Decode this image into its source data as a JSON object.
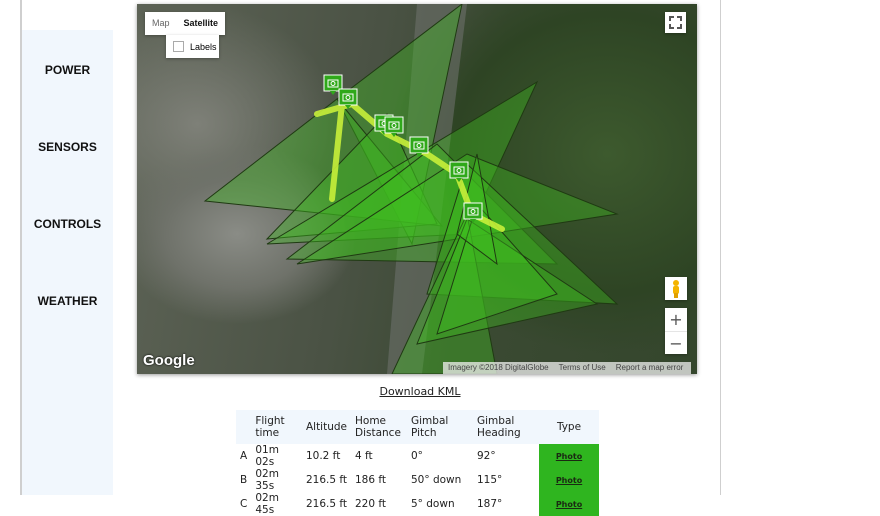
{
  "sidebar": {
    "items": [
      {
        "label": "POWER"
      },
      {
        "label": "SENSORS"
      },
      {
        "label": "CONTROLS"
      },
      {
        "label": "WEATHER"
      }
    ]
  },
  "map": {
    "type_control": {
      "map": "Map",
      "satellite": "Satellite",
      "selected": "Satellite",
      "labels": "Labels",
      "labels_checked": false
    },
    "logo": "Google",
    "attribution": {
      "imagery": "Imagery ©2018 DigitalGlobe",
      "terms": "Terms of Use",
      "report": "Report a map error"
    },
    "icons": {
      "fullscreen": "fullscreen-icon",
      "pegman": "pegman-icon",
      "marker": "camera-icon"
    },
    "colors": {
      "coverage": "#3fbf1f",
      "path": "#c8f03a",
      "marker": "#2fa81a"
    }
  },
  "download_kml": "Download KML",
  "table": {
    "headers": [
      "",
      "Flight time",
      "Altitude",
      "Home Distance",
      "Gimbal Pitch",
      "Gimbal Heading",
      "Type"
    ],
    "rows": [
      {
        "id": "A",
        "flight_time": "01m 02s",
        "altitude": "10.2 ft",
        "home_distance": "4 ft",
        "pitch": "0°",
        "heading": "92°",
        "type": "Photo"
      },
      {
        "id": "B",
        "flight_time": "02m 35s",
        "altitude": "216.5 ft",
        "home_distance": "186 ft",
        "pitch": "50° down",
        "heading": "115°",
        "type": "Photo"
      },
      {
        "id": "C",
        "flight_time": "02m 45s",
        "altitude": "216.5 ft",
        "home_distance": "220 ft",
        "pitch": "5° down",
        "heading": "187°",
        "type": "Photo"
      }
    ]
  }
}
